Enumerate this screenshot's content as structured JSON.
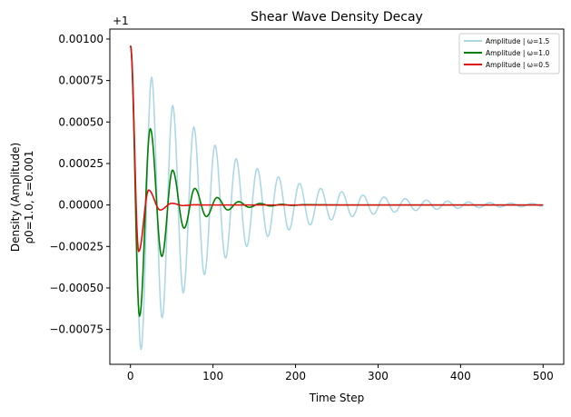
{
  "chart_data": {
    "type": "line",
    "title": "Shear Wave Density Decay",
    "xlabel": "Time Step",
    "ylabel_lines": [
      "Density (Amplitude)",
      "ρ0=1.0, ε=0.001"
    ],
    "offset_label": "+1",
    "xlim": [
      -25,
      525
    ],
    "ylim": [
      -0.00096,
      0.00106
    ],
    "x_ticks": [
      0,
      100,
      200,
      300,
      400,
      500
    ],
    "x_tick_labels": [
      "0",
      "100",
      "200",
      "300",
      "400",
      "500"
    ],
    "y_ticks": [
      -0.00075,
      -0.0005,
      -0.00025,
      0,
      0.00025,
      0.0005,
      0.00075,
      0.001
    ],
    "y_tick_labels": [
      "−0.00075",
      "−0.00050",
      "−0.00025",
      "0.00000",
      "0.00025",
      "0.00050",
      "0.00075",
      "0.00100"
    ],
    "grid": false,
    "legend_position": "top-right",
    "series": [
      {
        "name": "Amplitude | ω=1.5",
        "color": "#add8e6",
        "x": [
          0,
          12.8,
          25.6,
          38.4,
          51.2,
          64,
          76.8,
          89.6,
          102.4,
          115.2,
          128,
          140.8,
          153.6,
          166.4,
          179.2,
          192,
          204.8,
          217.6,
          230.4,
          243.2,
          256,
          268.8,
          281.6,
          294.4,
          307.2,
          320,
          332.8,
          345.6,
          358.4,
          371.2,
          384,
          396.8,
          409.6,
          422.4,
          435.2,
          448,
          460.8,
          473.6,
          486.4,
          499.2
        ],
        "y": [
          0.00096,
          -0.00087,
          0.00077,
          -0.00068,
          0.0006,
          -0.00053,
          0.00047,
          -0.00042,
          0.00036,
          -0.00032,
          0.00028,
          -0.00025,
          0.00022,
          -0.00019,
          0.00017,
          -0.00015,
          0.00013,
          -0.00012,
          0.0001,
          -9e-05,
          8e-05,
          -7e-05,
          6e-05,
          -5.5e-05,
          4.8e-05,
          -4.3e-05,
          3.8e-05,
          -3.3e-05,
          2.9e-05,
          -2.6e-05,
          2.3e-05,
          -2e-05,
          1.8e-05,
          -1.6e-05,
          1.4e-05,
          -1.2e-05,
          1.1e-05,
          -1e-05,
          9e-06,
          -8e-06
        ]
      },
      {
        "name": "Amplitude | ω=1.0",
        "color": "#008000",
        "x": [
          0,
          11,
          24,
          38,
          51,
          65,
          78,
          92,
          105,
          118,
          131,
          144,
          157,
          170,
          183,
          196,
          210,
          260,
          500
        ],
        "y": [
          0.00096,
          -0.00067,
          0.00046,
          -0.00031,
          0.00021,
          -0.00014,
          0.0001,
          -7e-05,
          4.5e-05,
          -3e-05,
          2e-05,
          -1.4e-05,
          9e-06,
          -6e-06,
          4e-06,
          -2.7e-06,
          1.8e-06,
          0,
          0
        ],
        "segment_ease": "cosine"
      },
      {
        "name": "Amplitude | ω=0.5",
        "color": "#e01010",
        "x": [
          0,
          10,
          22,
          36,
          50,
          64,
          78,
          90,
          120,
          500
        ],
        "y": [
          0.00096,
          -0.00028,
          9e-05,
          -3e-05,
          1e-05,
          -3.5e-06,
          1.2e-06,
          0,
          0,
          0
        ],
        "segment_ease": "cosine"
      }
    ]
  }
}
